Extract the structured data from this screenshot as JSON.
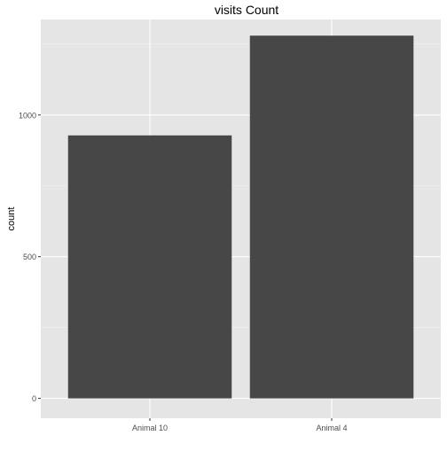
{
  "chart_data": {
    "type": "bar",
    "title": "visits Count",
    "xlabel": "",
    "ylabel": "count",
    "categories": [
      "Animal 10",
      "Animal 4"
    ],
    "values": [
      928,
      1280
    ],
    "ylim": [
      -70,
      1337
    ],
    "yticks": [
      0,
      500,
      1000
    ],
    "grid": true,
    "legend": "none",
    "colors": {
      "bar": "#474747",
      "panel": "#e5e5e5",
      "grid_major": "#ffffff",
      "grid_minor": "#f2f2f2",
      "text": "#000000",
      "tick_text": "#4d4d4d",
      "tick": "#333333"
    }
  }
}
